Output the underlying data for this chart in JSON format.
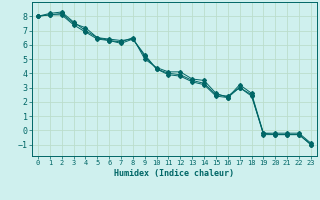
{
  "xlabel": "Humidex (Indice chaleur)",
  "background_color": "#cff0ee",
  "grid_color": "#bbddcc",
  "line_color": "#006666",
  "xlim": [
    -0.5,
    23.5
  ],
  "ylim": [
    -1.8,
    9.0
  ],
  "xticks": [
    0,
    1,
    2,
    3,
    4,
    5,
    6,
    7,
    8,
    9,
    10,
    11,
    12,
    13,
    14,
    15,
    16,
    17,
    18,
    19,
    20,
    21,
    22,
    23
  ],
  "yticks": [
    -1,
    0,
    1,
    2,
    3,
    4,
    5,
    6,
    7,
    8
  ],
  "series": [
    [
      8.0,
      8.1,
      8.2,
      7.5,
      7.2,
      6.5,
      6.4,
      6.3,
      6.4,
      5.2,
      4.3,
      4.0,
      3.9,
      3.5,
      3.3,
      2.5,
      2.4,
      3.0,
      2.5,
      -0.3,
      -0.3,
      -0.3,
      -0.3,
      -1.0
    ],
    [
      8.0,
      8.2,
      8.3,
      7.6,
      7.0,
      6.5,
      6.3,
      6.2,
      6.5,
      5.0,
      4.4,
      4.1,
      4.1,
      3.6,
      3.5,
      2.6,
      2.3,
      3.2,
      2.6,
      -0.2,
      -0.3,
      -0.3,
      -0.3,
      -1.0
    ],
    [
      8.0,
      8.1,
      8.1,
      7.4,
      6.9,
      6.4,
      6.3,
      6.1,
      6.4,
      5.3,
      4.3,
      3.9,
      3.8,
      3.4,
      3.2,
      2.4,
      2.3,
      3.0,
      2.4,
      -0.2,
      -0.2,
      -0.2,
      -0.2,
      -0.9
    ]
  ]
}
